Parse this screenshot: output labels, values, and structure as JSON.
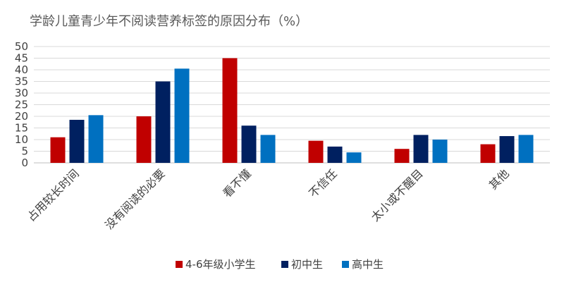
{
  "chart_data": {
    "type": "bar",
    "title": "学龄儿童青少年不阅读营养标签的原因分布（%）",
    "xlabel": "",
    "ylabel": "",
    "ylim": [
      0,
      50
    ],
    "yticks": [
      0,
      5,
      10,
      15,
      20,
      25,
      30,
      35,
      40,
      45,
      50
    ],
    "grid": true,
    "legend_position": "bottom",
    "categories": [
      "占用较长时间",
      "没有阅读的必要",
      "看不懂",
      "不信任",
      "太小或不醒目",
      "其他"
    ],
    "series": [
      {
        "name": "4-6年级小学生",
        "color": "#C00000",
        "values": [
          11,
          20,
          45,
          9.5,
          6,
          8
        ]
      },
      {
        "name": "初中生",
        "color": "#002060",
        "values": [
          18.5,
          35,
          16,
          7,
          12,
          11.5
        ]
      },
      {
        "name": "高中生",
        "color": "#0070C0",
        "values": [
          20.5,
          40.5,
          12,
          4.5,
          10,
          12
        ]
      }
    ],
    "gridline_color": "#D9D9D9",
    "axis_color": "#BFBFBF"
  }
}
